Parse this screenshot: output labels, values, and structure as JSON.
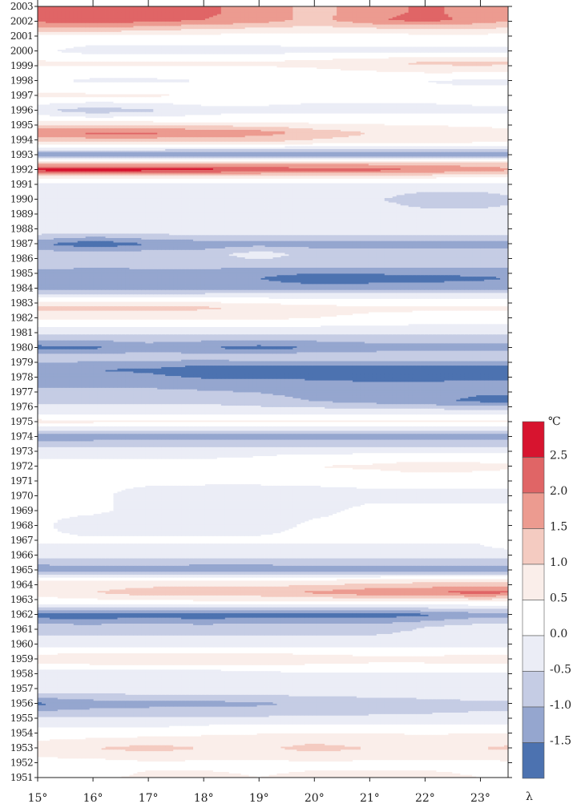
{
  "chart_data": {
    "type": "heatmap",
    "title": "",
    "xlabel": "λ",
    "ylabel": "",
    "x_ticks": [
      "15°",
      "16°",
      "17°",
      "18°",
      "19°",
      "20°",
      "21°",
      "22°",
      "23°"
    ],
    "x_range": [
      15,
      23.5
    ],
    "y_range": [
      1951,
      2003
    ],
    "years": [
      1951,
      1952,
      1953,
      1954,
      1955,
      1956,
      1957,
      1958,
      1959,
      1960,
      1961,
      1962,
      1963,
      1964,
      1965,
      1966,
      1967,
      1968,
      1969,
      1970,
      1971,
      1972,
      1973,
      1974,
      1975,
      1976,
      1977,
      1978,
      1979,
      1980,
      1981,
      1982,
      1983,
      1984,
      1985,
      1986,
      1987,
      1988,
      1989,
      1990,
      1991,
      1992,
      1993,
      1994,
      1995,
      1996,
      1997,
      1998,
      1999,
      2000,
      2001,
      2002,
      2003
    ],
    "legend": {
      "unit": "℃",
      "tick_labels": [
        "2.5",
        "2.0",
        "1.5",
        "1.0",
        "0.5",
        "0.0",
        "-0.5",
        "-1.0",
        "-1.5"
      ],
      "colors": [
        "#d7142f",
        "#e06566",
        "#ec9b90",
        "#f4cbc1",
        "#faeeea",
        "#ffffff",
        "#ebedf6",
        "#c5cce4",
        "#95a6cf",
        "#4c72b0"
      ]
    },
    "x_sample": [
      15,
      16,
      17,
      18,
      19,
      20,
      21,
      22,
      23,
      23.5
    ],
    "series": [
      {
        "year": 2002.6,
        "values": [
          2.1,
          2.2,
          2.2,
          2.1,
          1.8,
          1.3,
          1.8,
          2.1,
          1.8,
          1.6
        ]
      },
      {
        "year": 2002.1,
        "values": [
          2.2,
          2.4,
          2.2,
          2.0,
          1.8,
          1.3,
          1.9,
          2.2,
          1.8,
          1.6
        ]
      },
      {
        "year": 2001.5,
        "values": [
          1.3,
          1.4,
          1.2,
          1.0,
          0.9,
          0.8,
          0.9,
          1.0,
          1.0,
          0.9
        ]
      },
      {
        "year": 2001,
        "values": [
          0.3,
          0.3,
          0.3,
          0.3,
          0.3,
          0.3,
          0.3,
          0.3,
          0.3,
          0.3
        ]
      },
      {
        "year": 2000,
        "values": [
          0.1,
          -0.2,
          -0.2,
          -0.2,
          -0.2,
          -0.1,
          -0.1,
          -0.1,
          -0.1,
          -0.1
        ]
      },
      {
        "year": 1999.2,
        "values": [
          0.6,
          0.6,
          0.6,
          0.6,
          0.6,
          0.7,
          0.9,
          1.1,
          1.2,
          1.1
        ]
      },
      {
        "year": 1998,
        "values": [
          0.1,
          -0.1,
          -0.1,
          0.0,
          0.0,
          0.0,
          0.0,
          0.0,
          -0.1,
          -0.1
        ]
      },
      {
        "year": 1997,
        "values": [
          0.6,
          0.6,
          0.6,
          0.4,
          0.2,
          0.1,
          0.1,
          0.1,
          0.2,
          0.2
        ]
      },
      {
        "year": 1996,
        "values": [
          -0.4,
          -0.8,
          -0.6,
          -0.2,
          -0.1,
          -0.1,
          -0.1,
          -0.1,
          -0.1,
          -0.1
        ]
      },
      {
        "year": 1995.3,
        "values": [
          0.5,
          0.4,
          0.4,
          0.3,
          0.3,
          0.3,
          0.3,
          0.3,
          0.3,
          0.3
        ]
      },
      {
        "year": 1994.5,
        "values": [
          2.0,
          2.1,
          2.1,
          2.0,
          1.8,
          1.3,
          1.0,
          0.8,
          0.7,
          0.6
        ]
      },
      {
        "year": 1993.9,
        "values": [
          1.0,
          1.1,
          1.1,
          1.0,
          1.0,
          0.9,
          0.8,
          0.7,
          0.6,
          0.6
        ]
      },
      {
        "year": 1993,
        "values": [
          -1.4,
          -1.5,
          -1.5,
          -1.5,
          -1.5,
          -1.5,
          -1.5,
          -1.5,
          -1.5,
          -1.5
        ]
      },
      {
        "year": 1992.5,
        "values": [
          1.2,
          1.2,
          1.2,
          1.2,
          1.2,
          1.2,
          1.2,
          1.2,
          1.2,
          1.2
        ]
      },
      {
        "year": 1992,
        "values": [
          2.7,
          2.8,
          2.7,
          2.7,
          2.4,
          2.3,
          2.2,
          2.0,
          1.7,
          1.6
        ]
      },
      {
        "year": 1991.5,
        "values": [
          0.6,
          0.6,
          0.6,
          0.6,
          0.6,
          0.6,
          0.6,
          0.6,
          0.5,
          0.5
        ]
      },
      {
        "year": 1991,
        "values": [
          -0.2,
          -0.2,
          -0.2,
          -0.2,
          -0.2,
          -0.2,
          -0.2,
          -0.2,
          -0.2,
          -0.2
        ]
      },
      {
        "year": 1990,
        "values": [
          -0.2,
          -0.2,
          -0.2,
          -0.3,
          -0.3,
          -0.3,
          -0.4,
          -0.8,
          -0.8,
          -0.6
        ]
      },
      {
        "year": 1989,
        "values": [
          -0.2,
          -0.2,
          -0.2,
          -0.2,
          -0.2,
          -0.2,
          -0.2,
          -0.3,
          -0.3,
          -0.3
        ]
      },
      {
        "year": 1988,
        "values": [
          0.0,
          0.0,
          0.0,
          0.0,
          0.0,
          0.0,
          0.0,
          0.0,
          0.0,
          0.0
        ]
      },
      {
        "year": 1987,
        "values": [
          -1.4,
          -1.9,
          -1.5,
          -1.3,
          -1.2,
          -1.2,
          -1.2,
          -1.2,
          -1.2,
          -1.2
        ]
      },
      {
        "year": 1986.3,
        "values": [
          -0.7,
          -0.7,
          -0.7,
          -0.7,
          -0.2,
          -0.7,
          -0.7,
          -0.7,
          -0.7,
          -0.7
        ]
      },
      {
        "year": 1985.5,
        "values": [
          -0.9,
          -0.9,
          -0.9,
          -0.9,
          -0.9,
          -0.9,
          -0.9,
          -0.9,
          -0.9,
          -0.9
        ]
      },
      {
        "year": 1984.7,
        "values": [
          -1.3,
          -1.5,
          -1.4,
          -1.4,
          -1.5,
          -1.9,
          -1.8,
          -1.7,
          -1.6,
          -1.5
        ]
      },
      {
        "year": 1984,
        "values": [
          -1.2,
          -1.3,
          -1.3,
          -1.2,
          -1.2,
          -1.2,
          -1.2,
          -1.2,
          -1.2,
          -1.2
        ]
      },
      {
        "year": 1983.5,
        "values": [
          -0.2,
          -0.2,
          -0.2,
          -0.2,
          -0.2,
          -0.2,
          -0.2,
          -0.2,
          -0.2,
          -0.2
        ]
      },
      {
        "year": 1982.7,
        "values": [
          1.2,
          1.2,
          1.2,
          1.1,
          0.9,
          0.7,
          0.6,
          0.6,
          0.6,
          0.6
        ]
      },
      {
        "year": 1982,
        "values": [
          0.6,
          0.6,
          0.6,
          0.6,
          0.6,
          0.5,
          0.4,
          0.3,
          0.3,
          0.3
        ]
      },
      {
        "year": 1981,
        "values": [
          -0.4,
          -0.4,
          -0.4,
          -0.4,
          -0.4,
          -0.4,
          -0.4,
          -0.4,
          -0.4,
          -0.4
        ]
      },
      {
        "year": 1980,
        "values": [
          -1.7,
          -1.6,
          -1.3,
          -1.5,
          -1.7,
          -1.5,
          -1.3,
          -1.2,
          -1.2,
          -1.2
        ]
      },
      {
        "year": 1979.4,
        "values": [
          -0.7,
          -0.7,
          -0.7,
          -0.7,
          -0.6,
          -0.6,
          -0.6,
          -0.6,
          -0.6,
          -0.6
        ]
      },
      {
        "year": 1978.5,
        "values": [
          -1.4,
          -1.5,
          -1.6,
          -1.9,
          -1.9,
          -1.9,
          -1.9,
          -1.9,
          -1.9,
          -1.9
        ]
      },
      {
        "year": 1977.5,
        "values": [
          -1.1,
          -1.1,
          -1.1,
          -1.2,
          -1.2,
          -1.3,
          -1.4,
          -1.4,
          -1.3,
          -1.3
        ]
      },
      {
        "year": 1976.4,
        "values": [
          -0.6,
          -0.6,
          -0.6,
          -0.6,
          -0.8,
          -1.0,
          -1.2,
          -1.4,
          -1.6,
          -1.6
        ]
      },
      {
        "year": 1975.7,
        "values": [
          -0.2,
          -0.2,
          -0.2,
          -0.2,
          -0.2,
          -0.2,
          -0.2,
          -0.2,
          -0.3,
          -0.3
        ]
      },
      {
        "year": 1975,
        "values": [
          0.7,
          0.6,
          0.6,
          0.6,
          0.6,
          0.6,
          0.6,
          0.6,
          0.6,
          0.6
        ]
      },
      {
        "year": 1974.5,
        "values": [
          -0.4,
          -0.4,
          -0.4,
          -0.4,
          -0.4,
          -0.4,
          -0.4,
          -0.4,
          -0.4,
          -0.4
        ]
      },
      {
        "year": 1974,
        "values": [
          -1.4,
          -1.3,
          -1.3,
          -1.3,
          -1.3,
          -1.3,
          -1.3,
          -1.3,
          -1.3,
          -1.3
        ]
      },
      {
        "year": 1973,
        "values": [
          -0.1,
          -0.1,
          -0.1,
          -0.1,
          -0.1,
          -0.1,
          -0.1,
          -0.1,
          -0.1,
          -0.1
        ]
      },
      {
        "year": 1972,
        "values": [
          0.1,
          0.1,
          0.1,
          0.1,
          0.2,
          0.5,
          0.6,
          0.8,
          0.7,
          0.6
        ]
      },
      {
        "year": 1971,
        "values": [
          0.1,
          0.1,
          0.1,
          0.1,
          0.1,
          0.1,
          0.1,
          0.1,
          0.1,
          0.1
        ]
      },
      {
        "year": 1970,
        "values": [
          0.1,
          0.1,
          -0.2,
          -0.3,
          -0.3,
          -0.2,
          -0.1,
          -0.1,
          -0.1,
          -0.1
        ]
      },
      {
        "year": 1969,
        "values": [
          0.1,
          0.1,
          -0.2,
          -0.2,
          -0.2,
          -0.1,
          0.1,
          0.1,
          0.1,
          0.1
        ]
      },
      {
        "year": 1968,
        "values": [
          0.1,
          -0.3,
          -0.3,
          -0.3,
          -0.2,
          0.1,
          0.1,
          0.1,
          0.1,
          0.1
        ]
      },
      {
        "year": 1967,
        "values": [
          0.1,
          0.1,
          0.1,
          0.1,
          0.1,
          0.1,
          0.1,
          0.1,
          0.1,
          0.4
        ]
      },
      {
        "year": 1966,
        "values": [
          -0.3,
          -0.3,
          -0.3,
          -0.3,
          -0.3,
          -0.3,
          -0.3,
          -0.3,
          -0.3,
          -0.3
        ]
      },
      {
        "year": 1965,
        "values": [
          -1.4,
          -1.3,
          -1.3,
          -1.4,
          -1.4,
          -1.3,
          -1.3,
          -1.3,
          -1.3,
          -1.3
        ]
      },
      {
        "year": 1964.3,
        "values": [
          0.6,
          0.6,
          0.6,
          0.6,
          0.6,
          0.6,
          0.7,
          0.8,
          0.9,
          0.9
        ]
      },
      {
        "year": 1963.5,
        "values": [
          0.7,
          1.0,
          1.3,
          1.4,
          1.4,
          1.6,
          1.9,
          2.0,
          2.2,
          2.1
        ]
      },
      {
        "year": 1962.7,
        "values": [
          0.1,
          0.1,
          0.1,
          0.1,
          0.1,
          0.1,
          0.1,
          0.1,
          0.1,
          0.1
        ]
      },
      {
        "year": 1962,
        "values": [
          -1.8,
          -1.9,
          -1.7,
          -1.9,
          -1.7,
          -1.8,
          -1.8,
          -1.6,
          -1.2,
          -1.2
        ]
      },
      {
        "year": 1961.2,
        "values": [
          -0.8,
          -0.8,
          -0.8,
          -0.8,
          -0.8,
          -0.8,
          -0.8,
          -0.5,
          -0.3,
          -0.3
        ]
      },
      {
        "year": 1960,
        "values": [
          -0.2,
          -0.2,
          -0.2,
          -0.2,
          -0.2,
          -0.2,
          -0.2,
          -0.2,
          -0.2,
          -0.2
        ]
      },
      {
        "year": 1959,
        "values": [
          0.8,
          1.0,
          1.0,
          1.0,
          1.0,
          0.8,
          0.7,
          0.7,
          0.8,
          0.8
        ]
      },
      {
        "year": 1958,
        "values": [
          -0.4,
          -0.4,
          -0.4,
          -0.4,
          -0.2,
          -0.1,
          -0.1,
          -0.1,
          -0.1,
          -0.1
        ]
      },
      {
        "year": 1957,
        "values": [
          -0.1,
          -0.1,
          -0.1,
          -0.1,
          -0.1,
          -0.1,
          -0.1,
          -0.1,
          -0.1,
          -0.1
        ]
      },
      {
        "year": 1956,
        "values": [
          -1.6,
          -1.3,
          -1.2,
          -1.2,
          -1.1,
          -0.9,
          -0.8,
          -0.7,
          -0.6,
          -0.6
        ]
      },
      {
        "year": 1955,
        "values": [
          -0.4,
          -0.4,
          -0.4,
          -0.4,
          -0.4,
          -0.4,
          -0.4,
          -0.4,
          -0.4,
          -0.4
        ]
      },
      {
        "year": 1954.2,
        "values": [
          0.1,
          0.1,
          0.1,
          0.3,
          0.4,
          0.4,
          0.4,
          0.4,
          0.4,
          0.4
        ]
      },
      {
        "year": 1953,
        "values": [
          0.8,
          1.0,
          1.2,
          1.0,
          0.9,
          1.2,
          1.0,
          0.8,
          1.0,
          1.1
        ]
      },
      {
        "year": 1952,
        "values": [
          0.3,
          0.3,
          0.4,
          0.4,
          0.4,
          0.4,
          0.4,
          0.4,
          0.4,
          0.4
        ]
      },
      {
        "year": 1951,
        "values": [
          0.4,
          0.4,
          0.6,
          0.6,
          0.5,
          0.6,
          0.6,
          0.6,
          0.5,
          0.5
        ]
      }
    ]
  }
}
